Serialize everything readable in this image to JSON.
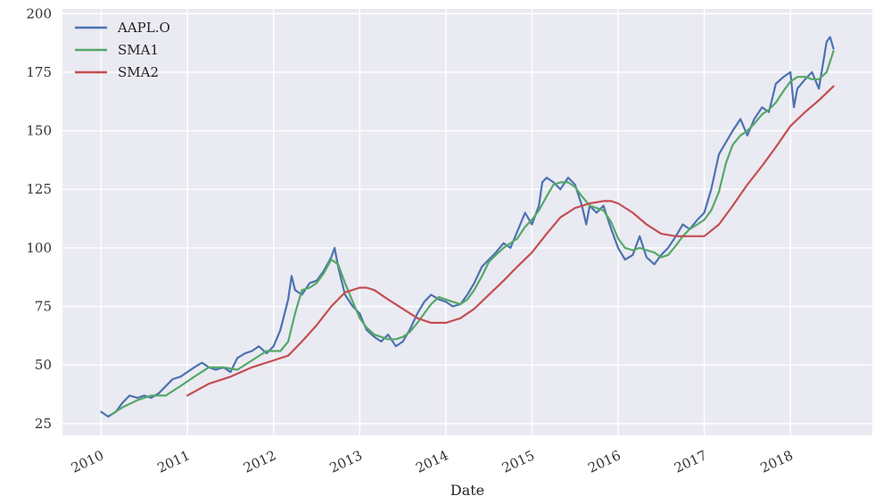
{
  "chart_data": {
    "type": "line",
    "title": "",
    "xlabel": "Date",
    "ylabel": "",
    "xlim": [
      2009.55,
      2018.95
    ],
    "ylim": [
      20,
      202
    ],
    "x_ticks": [
      2010,
      2011,
      2012,
      2013,
      2014,
      2015,
      2016,
      2017,
      2018
    ],
    "x_tick_labels": [
      "2010",
      "2011",
      "2012",
      "2013",
      "2014",
      "2015",
      "2016",
      "2017",
      "2018"
    ],
    "y_ticks": [
      25,
      50,
      75,
      100,
      125,
      150,
      175,
      200
    ],
    "y_tick_labels": [
      "25",
      "50",
      "75",
      "100",
      "125",
      "150",
      "175",
      "200"
    ],
    "grid": true,
    "legend_position": "top-left",
    "background_color": "#eaeaf2",
    "series": [
      {
        "name": "AAPL.O",
        "color": "#4c72b0",
        "x": [
          2010.0,
          2010.08,
          2010.17,
          2010.25,
          2010.33,
          2010.42,
          2010.5,
          2010.58,
          2010.67,
          2010.75,
          2010.83,
          2010.92,
          2011.0,
          2011.08,
          2011.17,
          2011.25,
          2011.33,
          2011.42,
          2011.5,
          2011.58,
          2011.67,
          2011.75,
          2011.83,
          2011.92,
          2012.0,
          2012.08,
          2012.17,
          2012.21,
          2012.25,
          2012.33,
          2012.42,
          2012.5,
          2012.58,
          2012.67,
          2012.71,
          2012.75,
          2012.83,
          2012.92,
          2013.0,
          2013.08,
          2013.17,
          2013.25,
          2013.33,
          2013.42,
          2013.5,
          2013.58,
          2013.67,
          2013.75,
          2013.83,
          2013.92,
          2014.0,
          2014.08,
          2014.17,
          2014.25,
          2014.33,
          2014.42,
          2014.5,
          2014.58,
          2014.67,
          2014.75,
          2014.83,
          2014.92,
          2015.0,
          2015.08,
          2015.12,
          2015.17,
          2015.25,
          2015.33,
          2015.42,
          2015.5,
          2015.58,
          2015.63,
          2015.67,
          2015.75,
          2015.83,
          2015.92,
          2016.0,
          2016.08,
          2016.17,
          2016.25,
          2016.33,
          2016.42,
          2016.5,
          2016.58,
          2016.67,
          2016.75,
          2016.83,
          2016.92,
          2017.0,
          2017.08,
          2017.17,
          2017.25,
          2017.33,
          2017.42,
          2017.5,
          2017.58,
          2017.67,
          2017.75,
          2017.83,
          2017.92,
          2018.0,
          2018.04,
          2018.08,
          2018.17,
          2018.25,
          2018.33,
          2018.42,
          2018.46,
          2018.5
        ],
        "values": [
          30,
          28,
          30,
          34,
          37,
          36,
          37,
          36,
          38,
          41,
          44,
          45,
          47,
          49,
          51,
          49,
          48,
          49,
          47,
          53,
          55,
          56,
          58,
          55,
          58,
          65,
          78,
          88,
          82,
          80,
          85,
          86,
          90,
          96,
          100,
          92,
          80,
          75,
          72,
          65,
          62,
          60,
          63,
          58,
          60,
          65,
          72,
          77,
          80,
          78,
          77,
          75,
          76,
          80,
          85,
          92,
          95,
          98,
          102,
          100,
          107,
          115,
          110,
          118,
          128,
          130,
          128,
          125,
          130,
          127,
          118,
          110,
          118,
          115,
          118,
          108,
          100,
          95,
          97,
          105,
          96,
          93,
          97,
          100,
          105,
          110,
          108,
          112,
          115,
          125,
          140,
          145,
          150,
          155,
          148,
          155,
          160,
          158,
          170,
          173,
          175,
          160,
          168,
          172,
          175,
          168,
          188,
          190,
          185
        ]
      },
      {
        "name": "SMA1",
        "color": "#55a868",
        "x": [
          2010.12,
          2010.25,
          2010.42,
          2010.58,
          2010.75,
          2010.92,
          2011.08,
          2011.25,
          2011.42,
          2011.58,
          2011.75,
          2011.92,
          2012.08,
          2012.17,
          2012.25,
          2012.33,
          2012.42,
          2012.5,
          2012.58,
          2012.67,
          2012.75,
          2012.83,
          2012.92,
          2013.0,
          2013.08,
          2013.17,
          2013.25,
          2013.33,
          2013.42,
          2013.5,
          2013.58,
          2013.67,
          2013.75,
          2013.83,
          2013.92,
          2014.0,
          2014.08,
          2014.17,
          2014.25,
          2014.33,
          2014.42,
          2014.5,
          2014.58,
          2014.67,
          2014.75,
          2014.83,
          2014.92,
          2015.0,
          2015.08,
          2015.17,
          2015.25,
          2015.33,
          2015.42,
          2015.5,
          2015.58,
          2015.67,
          2015.75,
          2015.83,
          2015.92,
          2016.0,
          2016.08,
          2016.17,
          2016.25,
          2016.33,
          2016.42,
          2016.5,
          2016.58,
          2016.67,
          2016.75,
          2016.83,
          2016.92,
          2017.0,
          2017.08,
          2017.17,
          2017.25,
          2017.33,
          2017.42,
          2017.5,
          2017.58,
          2017.67,
          2017.75,
          2017.83,
          2017.92,
          2018.0,
          2018.08,
          2018.17,
          2018.25,
          2018.33,
          2018.42,
          2018.5
        ],
        "values": [
          29,
          32,
          35,
          37,
          37,
          41,
          45,
          49,
          49,
          48,
          52,
          56,
          56,
          60,
          72,
          82,
          83,
          85,
          89,
          95,
          93,
          85,
          77,
          70,
          66,
          63,
          62,
          61,
          61,
          62,
          64,
          68,
          72,
          76,
          79,
          78,
          77,
          76,
          78,
          82,
          88,
          94,
          97,
          100,
          102,
          104,
          109,
          112,
          116,
          122,
          127,
          128,
          128,
          126,
          122,
          118,
          117,
          116,
          111,
          104,
          100,
          99,
          100,
          99,
          98,
          96,
          97,
          101,
          105,
          108,
          110,
          112,
          116,
          124,
          136,
          144,
          148,
          150,
          153,
          157,
          159,
          162,
          167,
          171,
          173,
          173,
          172,
          172,
          175,
          184
        ]
      },
      {
        "name": "SMA2",
        "color": "#c44e52",
        "x": [
          2011.0,
          2011.25,
          2011.5,
          2011.75,
          2012.0,
          2012.17,
          2012.33,
          2012.5,
          2012.67,
          2012.83,
          2013.0,
          2013.08,
          2013.17,
          2013.33,
          2013.5,
          2013.67,
          2013.83,
          2014.0,
          2014.17,
          2014.33,
          2014.5,
          2014.67,
          2014.83,
          2015.0,
          2015.17,
          2015.33,
          2015.5,
          2015.67,
          2015.83,
          2015.92,
          2016.0,
          2016.17,
          2016.33,
          2016.5,
          2016.67,
          2016.83,
          2017.0,
          2017.17,
          2017.33,
          2017.5,
          2017.67,
          2017.83,
          2018.0,
          2018.17,
          2018.33,
          2018.5
        ],
        "values": [
          37,
          42,
          45,
          49,
          52,
          54,
          60,
          67,
          75,
          81,
          83,
          83,
          82,
          78,
          74,
          70,
          68,
          68,
          70,
          74,
          80,
          86,
          92,
          98,
          106,
          113,
          117,
          119,
          120,
          120,
          119,
          115,
          110,
          106,
          105,
          105,
          105,
          110,
          118,
          127,
          135,
          143,
          152,
          158,
          163,
          169
        ]
      }
    ]
  }
}
